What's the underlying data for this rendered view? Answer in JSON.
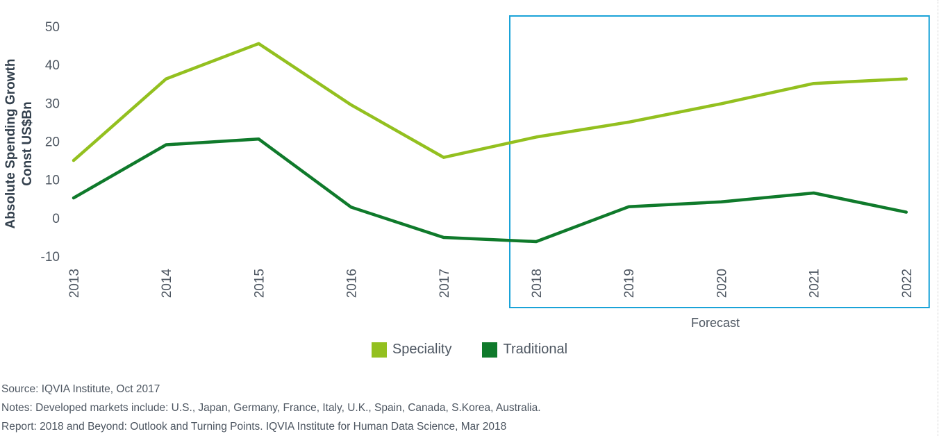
{
  "chart_data": {
    "type": "line",
    "ylabel_line1": "Absolute Spending Growth",
    "ylabel_line2": "Const US$Bn",
    "ylim": [
      -10,
      50
    ],
    "yticks": [
      50,
      40,
      30,
      20,
      10,
      0,
      -10
    ],
    "x": [
      "2013",
      "2014",
      "2015",
      "2016",
      "2017",
      "2018",
      "2019",
      "2020",
      "2021",
      "2022"
    ],
    "series": [
      {
        "name": "Speciality",
        "color": "#93c01f",
        "values": [
          15.0,
          36.3,
          45.5,
          29.5,
          15.8,
          21.1,
          25.0,
          29.8,
          35.1,
          36.3
        ]
      },
      {
        "name": "Traditional",
        "color": "#0f7a2b",
        "values": [
          5.2,
          19.1,
          20.6,
          2.8,
          -5.1,
          -6.2,
          2.9,
          4.2,
          6.5,
          1.5
        ]
      }
    ],
    "forecast_box": {
      "label": "Forecast",
      "from": "2018",
      "to": "2022",
      "color": "#1aa3d8"
    },
    "legend_position": "bottom-center",
    "grid": false
  },
  "notes": {
    "source": "Source: IQVIA Institute, Oct 2017",
    "markets": "Notes: Developed markets include: U.S., Japan, Germany, France, Italy, U.K., Spain, Canada, S.Korea, Australia.",
    "report": "Report: 2018 and Beyond: Outlook and Turning Points. IQVIA Institute for Human Data Science, Mar 2018"
  }
}
